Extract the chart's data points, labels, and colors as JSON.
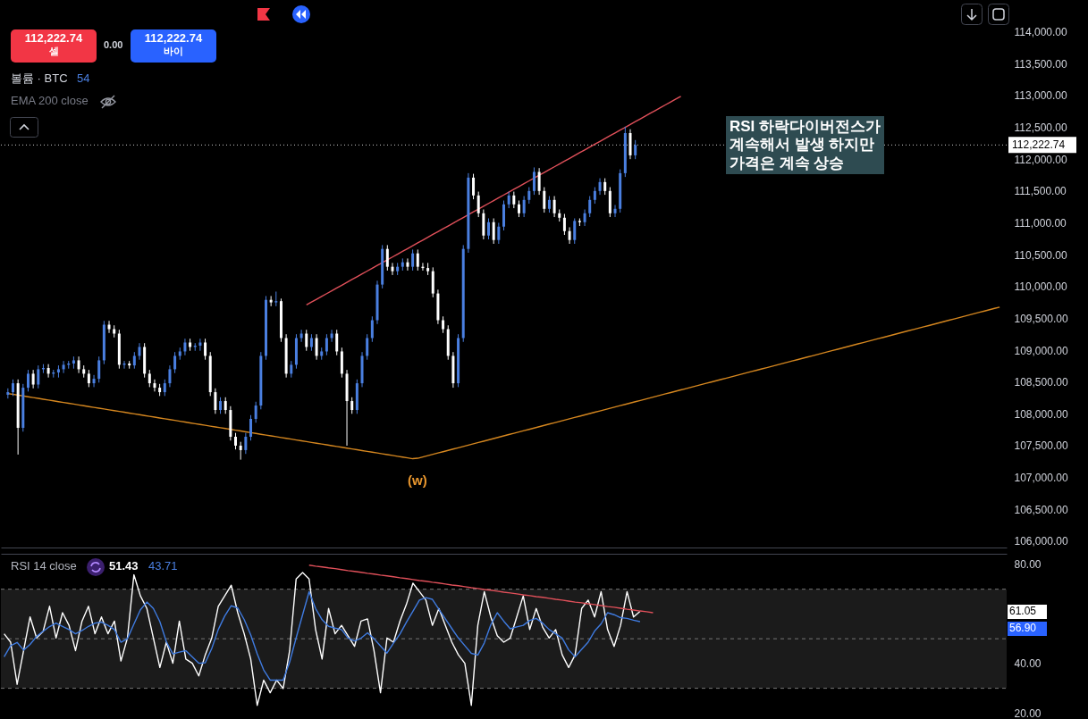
{
  "chart_data": [
    {
      "type": "candlestick",
      "ylim": [
        105900,
        114500
      ],
      "tick_labels": "y",
      "yticks": [
        {
          "value": 106000,
          "label": "106,000.00"
        },
        {
          "value": 106500,
          "label": "106,500.00"
        },
        {
          "value": 107000,
          "label": "107,000.00"
        },
        {
          "value": 107500,
          "label": "107,500.00"
        },
        {
          "value": 108000,
          "label": "108,000.00"
        },
        {
          "value": 108500,
          "label": "108,500.00"
        },
        {
          "value": 109000,
          "label": "109,000.00"
        },
        {
          "value": 109500,
          "label": "109,500.00"
        },
        {
          "value": 110000,
          "label": "110,000.00"
        },
        {
          "value": 110500,
          "label": "110,500.00"
        },
        {
          "value": 111000,
          "label": "111,000.00"
        },
        {
          "value": 111500,
          "label": "111,500.00"
        },
        {
          "value": 112000,
          "label": "112,000.00"
        },
        {
          "value": 112500,
          "label": "112,500.00"
        },
        {
          "value": 113000,
          "label": "113,000.00"
        },
        {
          "value": 113500,
          "label": "113,500.00"
        },
        {
          "value": 114000,
          "label": "114,000.00"
        }
      ],
      "categories": [
        null,
        null,
        null,
        null,
        null,
        null,
        null,
        null,
        null,
        null,
        null,
        null,
        null,
        null,
        null,
        null,
        null,
        null,
        null,
        null,
        null,
        null,
        null,
        null,
        null,
        null,
        null,
        null,
        null,
        null,
        null,
        null,
        null,
        null,
        null,
        null,
        null,
        null,
        null,
        null,
        null,
        null,
        null,
        null,
        null,
        null,
        null,
        null,
        null,
        null,
        null,
        null,
        null,
        null,
        null,
        null,
        null,
        null,
        null,
        null,
        null,
        null,
        null,
        null,
        null,
        null,
        null,
        null,
        null,
        null,
        null,
        null,
        null,
        null,
        null,
        null,
        null,
        null,
        null,
        null,
        null,
        null,
        null,
        null,
        null,
        null,
        null,
        null,
        null,
        null,
        null,
        null,
        null,
        null,
        null,
        null,
        null,
        null,
        null,
        null,
        null,
        null,
        null,
        null,
        null,
        null,
        null,
        null,
        null,
        null,
        null,
        null,
        null,
        null,
        null,
        null,
        null,
        null,
        null,
        null,
        null,
        null,
        null,
        null,
        null,
        null,
        null,
        null,
        null,
        null,
        null,
        null,
        null,
        null,
        null,
        null,
        null,
        null,
        null,
        null,
        null,
        null,
        null,
        null,
        null,
        null,
        null,
        null,
        null,
        null,
        null,
        null,
        null,
        null,
        null,
        null,
        null,
        null,
        null,
        null,
        null,
        null,
        null,
        null,
        null,
        null,
        null,
        null,
        null,
        null,
        null,
        null,
        null,
        null,
        null,
        null,
        null,
        null,
        null,
        null,
        null,
        null,
        null,
        null,
        null,
        null,
        null,
        null,
        null,
        null,
        null,
        null,
        null,
        null,
        null,
        null,
        null
      ],
      "ohlc": [
        [
          108300,
          108400,
          108240,
          108340
        ],
        [
          108340,
          108540,
          108280,
          108480
        ],
        [
          108480,
          108540,
          107360,
          107780
        ],
        [
          107780,
          108470,
          107720,
          108410
        ],
        [
          108410,
          108690,
          108350,
          108630
        ],
        [
          108630,
          108690,
          108400,
          108460
        ],
        [
          108460,
          108760,
          108400,
          108700
        ],
        [
          108700,
          108780,
          108640,
          108720
        ],
        [
          108720,
          108780,
          108570,
          108630
        ],
        [
          108630,
          108690,
          108570,
          108650
        ],
        [
          108650,
          108760,
          108570,
          108700
        ],
        [
          108700,
          108830,
          108640,
          108770
        ],
        [
          108770,
          108830,
          108710,
          108790
        ],
        [
          108790,
          108900,
          108710,
          108840
        ],
        [
          108840,
          108900,
          108640,
          108700
        ],
        [
          108700,
          108760,
          108570,
          108630
        ],
        [
          108630,
          108690,
          108420,
          108480
        ],
        [
          108480,
          108610,
          108420,
          108550
        ],
        [
          108550,
          108900,
          108490,
          108840
        ],
        [
          108840,
          109460,
          108780,
          109400
        ],
        [
          109400,
          109460,
          109270,
          109330
        ],
        [
          109330,
          109390,
          109200,
          109260
        ],
        [
          109260,
          109320,
          108710,
          108770
        ],
        [
          108770,
          108830,
          108710,
          108790
        ],
        [
          108790,
          108830,
          108710,
          108760
        ],
        [
          108760,
          108970,
          108710,
          108910
        ],
        [
          108910,
          109110,
          108850,
          109050
        ],
        [
          109050,
          109110,
          108570,
          108630
        ],
        [
          108630,
          108690,
          108420,
          108480
        ],
        [
          108480,
          108540,
          108350,
          108410
        ],
        [
          108410,
          108470,
          108280,
          108340
        ],
        [
          108340,
          108540,
          108280,
          108480
        ],
        [
          108480,
          108760,
          108420,
          108700
        ],
        [
          108700,
          108970,
          108640,
          108910
        ],
        [
          108910,
          109040,
          108850,
          108980
        ],
        [
          108980,
          109180,
          108920,
          109120
        ],
        [
          109120,
          109180,
          108990,
          109050
        ],
        [
          109050,
          109110,
          108990,
          109070
        ],
        [
          109070,
          109180,
          108990,
          109120
        ],
        [
          109120,
          109180,
          108850,
          108910
        ],
        [
          108910,
          108970,
          108280,
          108340
        ],
        [
          108340,
          108400,
          108000,
          108060
        ],
        [
          108060,
          108260,
          108000,
          108200
        ],
        [
          108200,
          108260,
          108000,
          108060
        ],
        [
          108060,
          108120,
          107580,
          107640
        ],
        [
          107640,
          107700,
          107440,
          107500
        ],
        [
          107500,
          107560,
          107280,
          107430
        ],
        [
          107430,
          107700,
          107370,
          107640
        ],
        [
          107640,
          107980,
          107580,
          107920
        ],
        [
          107920,
          108190,
          107860,
          108130
        ],
        [
          108130,
          108970,
          108070,
          108910
        ],
        [
          108910,
          109850,
          108850,
          109790
        ],
        [
          109790,
          109850,
          109690,
          109750
        ],
        [
          109750,
          109920,
          109690,
          109770
        ],
        [
          109770,
          109810,
          109130,
          109190
        ],
        [
          109190,
          109250,
          108570,
          108630
        ],
        [
          108630,
          108830,
          108570,
          108770
        ],
        [
          108770,
          109250,
          108710,
          109190
        ],
        [
          109190,
          109320,
          109130,
          109260
        ],
        [
          109260,
          109320,
          108990,
          109050
        ],
        [
          109050,
          109250,
          108990,
          109190
        ],
        [
          109190,
          109250,
          108850,
          108910
        ],
        [
          108910,
          109040,
          108850,
          108980
        ],
        [
          108980,
          109250,
          108920,
          109190
        ],
        [
          109190,
          109320,
          109130,
          109260
        ],
        [
          109260,
          109320,
          108920,
          108980
        ],
        [
          108980,
          109040,
          108570,
          108630
        ],
        [
          108630,
          108690,
          107500,
          108200
        ],
        [
          108200,
          108260,
          108000,
          108060
        ],
        [
          108060,
          108540,
          108000,
          108480
        ],
        [
          108480,
          108970,
          108420,
          108910
        ],
        [
          108910,
          109250,
          108850,
          109190
        ],
        [
          109190,
          109530,
          109130,
          109470
        ],
        [
          109470,
          110090,
          109410,
          110030
        ],
        [
          110030,
          110650,
          109970,
          110590
        ],
        [
          110590,
          110650,
          110250,
          110310
        ],
        [
          110310,
          110370,
          110180,
          110240
        ],
        [
          110240,
          110370,
          110180,
          110310
        ],
        [
          110310,
          110440,
          110250,
          110380
        ],
        [
          110380,
          110440,
          110250,
          110310
        ],
        [
          110310,
          110580,
          110250,
          110520
        ],
        [
          110520,
          110580,
          110250,
          110310
        ],
        [
          110310,
          110370,
          110250,
          110290
        ],
        [
          110290,
          110370,
          110180,
          110240
        ],
        [
          110240,
          110300,
          109830,
          109890
        ],
        [
          109890,
          109950,
          109410,
          109470
        ],
        [
          109470,
          109530,
          109270,
          109330
        ],
        [
          109330,
          109390,
          108850,
          108910
        ],
        [
          108910,
          108970,
          108410,
          108480
        ],
        [
          108480,
          109250,
          108420,
          109190
        ],
        [
          109190,
          110650,
          109130,
          110590
        ],
        [
          110590,
          111780,
          110530,
          111710
        ],
        [
          111710,
          111770,
          111370,
          111430
        ],
        [
          111430,
          111490,
          111090,
          111150
        ],
        [
          111150,
          111210,
          110740,
          110800
        ],
        [
          110800,
          111070,
          110740,
          111010
        ],
        [
          111010,
          111070,
          110670,
          110730
        ],
        [
          110730,
          111000,
          110670,
          110940
        ],
        [
          110940,
          111350,
          110880,
          111290
        ],
        [
          111290,
          111490,
          111230,
          111430
        ],
        [
          111430,
          111490,
          111230,
          111290
        ],
        [
          111290,
          111350,
          111090,
          111150
        ],
        [
          111150,
          111420,
          111090,
          111360
        ],
        [
          111360,
          111560,
          111300,
          111500
        ],
        [
          111500,
          111870,
          111440,
          111800
        ],
        [
          111800,
          111860,
          111440,
          111500
        ],
        [
          111500,
          111560,
          111160,
          111220
        ],
        [
          111220,
          111420,
          111160,
          111360
        ],
        [
          111360,
          111420,
          111090,
          111150
        ],
        [
          111150,
          111210,
          111020,
          111080
        ],
        [
          111080,
          111140,
          110810,
          110870
        ],
        [
          110870,
          110930,
          110670,
          110730
        ],
        [
          110730,
          111070,
          110670,
          111030
        ],
        [
          111030,
          111070,
          110950,
          111010
        ],
        [
          111010,
          111210,
          110950,
          111150
        ],
        [
          111150,
          111420,
          111090,
          111360
        ],
        [
          111360,
          111560,
          111300,
          111500
        ],
        [
          111500,
          111700,
          111440,
          111640
        ],
        [
          111640,
          111700,
          111440,
          111500
        ],
        [
          111500,
          111560,
          111090,
          111150
        ],
        [
          111150,
          111280,
          111090,
          111220
        ],
        [
          111220,
          111840,
          111160,
          111780
        ],
        [
          111780,
          112510,
          111720,
          112410
        ],
        [
          112410,
          112470,
          112000,
          112060
        ],
        [
          112060,
          112300,
          112000,
          112222.74
        ],
        null,
        null,
        null,
        null,
        null,
        null,
        null,
        null,
        null,
        null,
        null,
        null,
        null,
        null,
        null,
        null,
        null,
        null,
        null,
        null,
        null,
        null,
        null,
        null,
        null,
        null,
        null,
        null,
        null,
        null,
        null,
        null,
        null,
        null,
        null,
        null,
        null,
        null,
        null,
        null,
        null,
        null,
        null,
        null,
        null,
        null,
        null,
        null,
        null,
        null,
        null,
        null,
        null,
        null,
        null,
        null,
        null,
        null,
        null,
        null,
        null,
        null,
        null,
        null,
        null,
        null,
        null,
        null,
        null,
        null,
        null,
        null
      ],
      "series": [
        {
          "type": "line",
          "color": "#e0505a",
          "values": [
            null,
            null,
            null,
            null,
            null,
            null,
            null,
            null,
            null,
            null,
            null,
            null,
            null,
            null,
            null,
            null,
            null,
            null,
            null,
            null,
            null,
            null,
            null,
            null,
            null,
            null,
            null,
            null,
            null,
            null,
            null,
            null,
            null,
            null,
            null,
            null,
            null,
            null,
            null,
            null,
            null,
            null,
            null,
            null,
            null,
            null,
            null,
            null,
            null,
            null,
            null,
            null,
            null,
            null,
            null,
            null,
            null,
            null,
            null,
            109711,
            109755,
            109799,
            109843,
            109888,
            109932,
            109976,
            110020,
            110065,
            110109,
            110153,
            110198,
            110242,
            110286,
            110330,
            110375,
            110419,
            110463,
            110508,
            110552,
            110596,
            110640,
            110685,
            110729,
            110773,
            110818,
            110862,
            110906,
            110950,
            110995,
            111039,
            111083,
            111128,
            111172,
            111216,
            111260,
            111305,
            111349,
            111393,
            111438,
            111482,
            111526,
            111570,
            111615,
            111659,
            111703,
            111748,
            111792,
            111836,
            111880,
            111925,
            111969,
            112013,
            112058,
            112102,
            112146,
            112190,
            112235,
            112279,
            112323,
            112368,
            112412,
            112456,
            112500,
            112545,
            112589,
            112633,
            112678,
            112722,
            112766,
            112810,
            112855,
            112899,
            112943,
            112988,
            null,
            null,
            null,
            null,
            null,
            null,
            null,
            null,
            null,
            null,
            null,
            null,
            null,
            null,
            null,
            null,
            null,
            null,
            null,
            null,
            null,
            null,
            null,
            null,
            null,
            null,
            null,
            null,
            null,
            null,
            null,
            null,
            null,
            null,
            null,
            null,
            null,
            null,
            null,
            null,
            null,
            null,
            null,
            null,
            null,
            null,
            null,
            null,
            null,
            null,
            null,
            null,
            null,
            null,
            null,
            null,
            null,
            null,
            null,
            null,
            null,
            null,
            null
          ]
        },
        {
          "type": "line",
          "color": "#d4861f",
          "values": [
            108319,
            108306,
            108293,
            108281,
            108268,
            108255,
            108242,
            108229,
            108217,
            108204,
            108191,
            108178,
            108165,
            108153,
            108140,
            108127,
            108114,
            108101,
            108089,
            108076,
            108063,
            108050,
            108037,
            108025,
            108012,
            107999,
            107986,
            107973,
            107961,
            107948,
            107935,
            107922,
            107909,
            107897,
            107884,
            107871,
            107858,
            107845,
            107833,
            107820,
            107807,
            107794,
            107781,
            107769,
            107756,
            107743,
            107730,
            107717,
            107705,
            107692,
            107679,
            107666,
            107653,
            107641,
            107628,
            107615,
            107602,
            107589,
            107577,
            107564,
            107551,
            107538,
            107525,
            107513,
            107500,
            107487,
            107474,
            107461,
            107449,
            107436,
            107423,
            107410,
            107397,
            107385,
            107372,
            107359,
            107346,
            107333,
            107321,
            107308,
            107295,
            107302,
            107323,
            107343,
            107364,
            107385,
            107405,
            107426,
            107447,
            107467,
            107488,
            107508,
            107529,
            107550,
            107570,
            107591,
            107612,
            107632,
            107653,
            107674,
            107694,
            107715,
            107736,
            107756,
            107777,
            107797,
            107818,
            107839,
            107859,
            107880,
            107901,
            107921,
            107942,
            107963,
            107983,
            108004,
            108025,
            108045,
            108066,
            108086,
            108107,
            108128,
            108148,
            108169,
            108190,
            108210,
            108231,
            108252,
            108272,
            108293,
            108314,
            108334,
            108355,
            108376,
            108396,
            108417,
            108437,
            108458,
            108479,
            108499,
            108520,
            108541,
            108561,
            108582,
            108603,
            108623,
            108644,
            108665,
            108685,
            108706,
            108726,
            108747,
            108768,
            108788,
            108809,
            108830,
            108850,
            108871,
            108892,
            108912,
            108933,
            108954,
            108974,
            108995,
            109015,
            109036,
            109057,
            109077,
            109098,
            109119,
            109139,
            109160,
            109181,
            109201,
            109222,
            109243,
            109263,
            109284,
            109305,
            109325,
            109346,
            109367,
            109387,
            109408,
            109429,
            109449,
            109470,
            109490,
            109511,
            109532,
            109552,
            109573,
            109594,
            109614,
            109635,
            109656,
            109676
          ]
        }
      ],
      "ref_lines": [
        {
          "axis": "y",
          "value": 112222.74,
          "label": "112,222.74",
          "color": "#cccccc",
          "line_style": "dotted"
        }
      ],
      "annotations": [
        "112,222.74",
        "셀",
        "0.00",
        "112,222.74",
        "바이",
        "볼륨 · BTC",
        "54",
        "EMA 200 close",
        "RSI 하락다이버전스가\n계속해서 발생 하지만\n가격은 계속 상승",
        "(w)"
      ]
    },
    {
      "type": "line",
      "ylim": [
        17.6,
        84.3
      ],
      "tick_labels": "y",
      "yticks": [
        {
          "value": 20,
          "label": "20.00"
        },
        {
          "value": 40,
          "label": "40.00"
        },
        {
          "value": 80,
          "label": "80.00"
        }
      ],
      "categories": [
        null,
        null,
        null,
        null,
        null,
        null,
        null,
        null,
        null,
        null,
        null,
        null,
        null,
        null,
        null,
        null,
        null,
        null,
        null,
        null,
        null,
        null,
        null,
        null,
        null,
        null,
        null,
        null,
        null,
        null,
        null,
        null,
        null,
        null,
        null,
        null,
        null,
        null,
        null,
        null,
        null,
        null,
        null,
        null,
        null,
        null,
        null,
        null,
        null,
        null,
        null,
        null,
        null,
        null,
        null,
        null,
        null,
        null,
        null,
        null,
        null,
        null,
        null,
        null,
        null,
        null,
        null,
        null,
        null,
        null,
        null,
        null,
        null,
        null,
        null,
        null,
        null,
        null,
        null,
        null,
        null,
        null,
        null,
        null,
        null,
        null,
        null,
        null,
        null,
        null,
        null,
        null,
        null,
        null,
        null,
        null,
        null,
        null,
        null,
        null,
        null,
        null,
        null,
        null,
        null,
        null,
        null,
        null,
        null,
        null,
        null,
        null,
        null,
        null,
        null,
        null,
        null,
        null,
        null,
        null,
        null,
        null,
        null,
        null,
        null,
        null,
        null,
        null,
        null,
        null,
        null,
        null,
        null,
        null,
        null,
        null,
        null,
        null,
        null,
        null,
        null,
        null,
        null,
        null,
        null,
        null,
        null,
        null,
        null,
        null,
        null,
        null,
        null,
        null,
        null
      ],
      "bands": [
        {
          "axis": "y",
          "from": 30,
          "to": 70,
          "color": "#1b1b1b"
        }
      ],
      "ref_lines": [
        {
          "axis": "y",
          "value": 70,
          "color": "#777777",
          "line_style": "dashed"
        },
        {
          "axis": "y",
          "value": 50,
          "color": "#777777",
          "line_style": "dashed"
        },
        {
          "axis": "y",
          "value": 30,
          "color": "#777777",
          "line_style": "dashed"
        }
      ],
      "series": [
        {
          "color": "#ffffff",
          "values": [
            52.0,
            48.6,
            31.6,
            45.2,
            58.8,
            50.3,
            52.9,
            63.1,
            50.3,
            60.5,
            55.4,
            45.2,
            57.1,
            63.1,
            52.0,
            58.8,
            52.0,
            57.1,
            41.0,
            50.3,
            75.8,
            67.3,
            62.2,
            50.3,
            38.4,
            48.6,
            40.1,
            57.1,
            41.8,
            40.1,
            35.0,
            43.5,
            50.3,
            63.1,
            67.3,
            71.6,
            60.5,
            52.0,
            41.8,
            23.1,
            33.3,
            28.2,
            33.3,
            29.9,
            45.2,
            74.1,
            76.7,
            74.1,
            53.7,
            41.8,
            62.2,
            52.0,
            55.4,
            51.2,
            46.9,
            57.1,
            58.0,
            45.2,
            28.2,
            50.3,
            48.6,
            57.1,
            63.9,
            72.4,
            69.0,
            65.6,
            55.4,
            62.2,
            55.4,
            48.6,
            43.5,
            40.1,
            23.1,
            55.4,
            69.0,
            58.8,
            51.2,
            48.6,
            50.3,
            58.8,
            67.3,
            53.7,
            62.2,
            54.6,
            50.3,
            53.7,
            43.5,
            38.4,
            43.5,
            62.2,
            65.6,
            58.8,
            69.0,
            53.7,
            46.9,
            55.4,
            69.0,
            58.8,
            61.05,
            null,
            null,
            null,
            null,
            null,
            null,
            null,
            null,
            null,
            null,
            null,
            null,
            null,
            null,
            null,
            null,
            null,
            null,
            null,
            null,
            null,
            null,
            null,
            null,
            null,
            null,
            null,
            null,
            null,
            null,
            null,
            null,
            null,
            null,
            null,
            null,
            null,
            null,
            null,
            null,
            null,
            null,
            null,
            null,
            null,
            null,
            null,
            null,
            null,
            null,
            null,
            null,
            null,
            null,
            null,
            null
          ]
        },
        {
          "color": "#3f7be0",
          "values": [
            42.7,
            47.2,
            48.5,
            45.4,
            47.7,
            50.9,
            53.0,
            54.9,
            56.3,
            55.0,
            53.7,
            52.0,
            53.3,
            55.0,
            56.3,
            56.7,
            55.4,
            53.7,
            48.6,
            50.0,
            55.9,
            61.7,
            64.8,
            62.2,
            56.9,
            48.8,
            43.9,
            44.6,
            45.2,
            42.7,
            40.1,
            40.3,
            46.1,
            53.7,
            59.2,
            63.3,
            62.4,
            57.7,
            51.6,
            43.9,
            37.4,
            33.3,
            33.3,
            33.3,
            40.6,
            50.3,
            59.7,
            69.0,
            62.2,
            57.7,
            55.0,
            54.3,
            53.7,
            50.3,
            49.1,
            50.2,
            52.4,
            50.0,
            47.1,
            44.2,
            48.2,
            51.9,
            56.7,
            61.1,
            65.6,
            66.6,
            65.9,
            61.9,
            58.0,
            54.1,
            50.3,
            47.2,
            44.1,
            43.4,
            48.3,
            55.6,
            60.5,
            57.1,
            54.0,
            54.8,
            55.4,
            57.4,
            58.2,
            56.3,
            53.7,
            52.0,
            50.3,
            45.5,
            42.7,
            45.7,
            48.6,
            53.1,
            56.0,
            60.5,
            59.7,
            58.5,
            58.2,
            57.5,
            56.9,
            null,
            null,
            null,
            null,
            null,
            null,
            null,
            null,
            null,
            null,
            null,
            null,
            null,
            null,
            null,
            null,
            null,
            null,
            null,
            null,
            null,
            null,
            null,
            null,
            null,
            null,
            null,
            null,
            null,
            null,
            null,
            null,
            null,
            null,
            null,
            null,
            null,
            null,
            null,
            null,
            null,
            null,
            null,
            null,
            null,
            null,
            null,
            null,
            null,
            null,
            null,
            null,
            null,
            null,
            null,
            null
          ]
        },
        {
          "color": "#e0505a",
          "values": [
            null,
            null,
            null,
            null,
            null,
            null,
            null,
            null,
            null,
            null,
            null,
            null,
            null,
            null,
            null,
            null,
            null,
            null,
            null,
            null,
            null,
            null,
            null,
            null,
            null,
            null,
            null,
            null,
            null,
            null,
            null,
            null,
            null,
            null,
            null,
            null,
            null,
            null,
            null,
            null,
            null,
            null,
            null,
            null,
            null,
            null,
            null,
            79.7,
            79.3,
            79.0,
            78.6,
            78.3,
            77.9,
            77.5,
            77.2,
            76.8,
            76.4,
            76.1,
            75.7,
            75.4,
            75.0,
            74.6,
            74.3,
            73.9,
            73.5,
            73.2,
            72.8,
            72.5,
            72.1,
            71.7,
            71.4,
            71.0,
            70.6,
            70.3,
            69.9,
            69.6,
            69.2,
            68.8,
            68.5,
            68.1,
            67.7,
            67.4,
            67.0,
            66.7,
            66.3,
            65.9,
            65.6,
            65.2,
            64.8,
            64.5,
            64.1,
            63.8,
            63.4,
            63.0,
            62.7,
            62.3,
            61.9,
            61.6,
            61.2,
            60.9,
            60.5,
            null,
            null,
            null,
            null,
            null,
            null,
            null,
            null,
            null,
            null,
            null,
            null,
            null,
            null,
            null,
            null,
            null,
            null,
            null,
            null,
            null,
            null,
            null,
            null,
            null,
            null,
            null,
            null,
            null,
            null,
            null,
            null,
            null,
            null,
            null,
            null,
            null,
            null,
            null,
            null,
            null,
            null,
            null,
            null,
            null,
            null,
            null,
            null,
            null,
            null,
            null,
            null,
            null,
            null
          ]
        }
      ],
      "annotations": [
        "RSI 14 close",
        "51.43",
        "43.71",
        "61.05",
        "56.90"
      ]
    }
  ]
}
